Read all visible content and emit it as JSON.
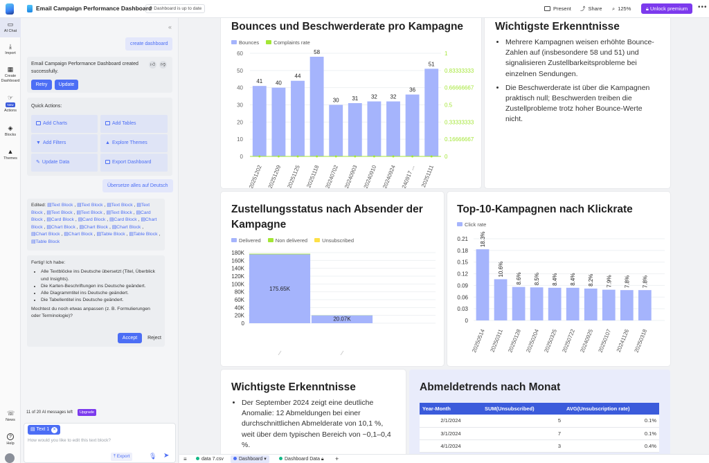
{
  "topbar": {
    "title": "Email Campaign Performance Dashboard",
    "status": "Dashboard is up to date",
    "present": "Present",
    "share": "Share",
    "zoom": "125%",
    "premium": "Unlock premium"
  },
  "rail": [
    {
      "label": "AI Chat",
      "icon": "chat-icon"
    },
    {
      "label": "Import",
      "icon": "import-icon"
    },
    {
      "label": "Create Dashboard",
      "icon": "dashboard-icon"
    },
    {
      "label": "Actions",
      "icon": "actions-icon",
      "badge": "New"
    },
    {
      "label": "Blocks",
      "icon": "blocks-icon"
    },
    {
      "label": "Themes",
      "icon": "themes-icon"
    },
    {
      "label": "News",
      "icon": "news-icon"
    },
    {
      "label": "Help",
      "icon": "help-icon"
    }
  ],
  "chat": {
    "msg1": "create dashboard",
    "reply1": "Email Campaign Performance Dashboard created successfully.",
    "retry": "Retry",
    "update": "Update",
    "quick_title": "Quick Actions:",
    "quick": [
      "Add Charts",
      "Add Tables",
      "Add Filters",
      "Explore Themes",
      "Update Data",
      "Export Dashboard"
    ],
    "msg2": "Übersetze alles auf Deutsch",
    "edited_label": "Edited:",
    "edited_items": [
      "Text Block",
      "Text Block",
      "Text Block",
      "Text Block",
      "Text Block",
      "Text Block",
      "Text Block",
      "Card Block",
      "Card Block",
      "Card Block",
      "Card Block",
      "Chart Block",
      "Chart Block",
      "Chart Block",
      "Chart Block",
      "Chart Block",
      "Chart Block",
      "Table Block",
      "Table Block",
      "Table Block"
    ],
    "done_title": "Fertig! Ich habe:",
    "done_items": [
      "Alle Textblöcke ins Deutsche übersetzt (Titel, Überblick und Insights).",
      "Die Karten-Beschriftungen ins Deutsche geändert.",
      "Alle Diagrammtitel ins Deutsche geändert.",
      "Die Tabellentitel ins Deutsche geändert."
    ],
    "done_question": "Mochtest du noch etwas anpassen (z. B. Formulierungen oder Terminologie)?",
    "accept": "Accept",
    "reject": "Reject",
    "usage": "11 of 20 AI messages left",
    "upgrade": "Upgrade",
    "chip": "Text 1",
    "placeholder": "How would you like to edit this text block?",
    "export": "Export"
  },
  "charts": {
    "bounces": {
      "title": "Bounces und Beschwerderate pro Kampagne",
      "legend": [
        "Bounces",
        "Complaints rate"
      ]
    },
    "insights1": {
      "title": "Wichtigste Erkenntnisse",
      "items": [
        "Mehrere Kampagnen weisen erhöhte Bounce-Zahlen auf (insbesondere 58 und 51) und signalisieren Zustellbarkeitsprobleme bei einzelnen Sendungen.",
        "Die Beschwerderate ist über die Kampagnen praktisch null; Beschwerden treiben die Zustellprobleme trotz hoher Bounce-Werte nicht."
      ]
    },
    "delivery": {
      "title": "Zustellungsstatus nach Absender der Kampagne",
      "legend": [
        "Delivered",
        "Non delivered",
        "Unsubscribed"
      ]
    },
    "ctr": {
      "title": "Top-10-Kampagnen nach Klickrate",
      "legend": [
        "Click rate"
      ]
    },
    "insights2": {
      "title": "Wichtigste Erkenntnisse",
      "items": [
        "Der September 2024 zeigt eine deutliche Anomalie: 12 Abmeldungen bei einer durchschnittlichen Abmelderate von 10,1 %, weit über dem typischen Bereich von ~0,1–0,4 %."
      ]
    },
    "unsub": {
      "title": "Abmeldetrends nach Monat",
      "headers": [
        "Year-Month",
        "SUM(Unsubscribed)",
        "AVG(Unsubscription rate)"
      ],
      "rows": [
        [
          "2/1/2024",
          "5",
          "0.1%"
        ],
        [
          "3/1/2024",
          "7",
          "0.1%"
        ],
        [
          "4/1/2024",
          "3",
          "0.4%"
        ]
      ]
    }
  },
  "tabs": [
    "data 7.csv",
    "Dashboard",
    "Dashboard Data"
  ],
  "chart_data": [
    {
      "type": "bar",
      "title": "Bounces und Beschwerderate pro Kampagne",
      "categories": [
        "20251202",
        "20251209",
        "20251125",
        "20251118",
        "20240702",
        "20240903",
        "20240910",
        "20240924",
        "20240917 ...",
        "20251111"
      ],
      "series": [
        {
          "name": "Bounces",
          "values": [
            41,
            40,
            44,
            58,
            30,
            31,
            32,
            32,
            36,
            51
          ],
          "color": "#a5b4fc"
        },
        {
          "name": "Complaints rate",
          "values": [
            0,
            0,
            0,
            0,
            0,
            0,
            0,
            0,
            0,
            0
          ],
          "color": "#a3e635"
        }
      ],
      "ylim": [
        0,
        60
      ],
      "yticks": [
        0,
        10,
        20,
        30,
        40,
        50,
        60
      ],
      "y2ticks": [
        "0",
        "0.16666667",
        "0.33333333",
        "0.5",
        "0.66666667",
        "0.83333333",
        "1"
      ],
      "legend": "top-left"
    },
    {
      "type": "bar",
      "title": "Zustellungsstatus nach Absender der Kampagne",
      "categories": [
        "",
        ""
      ],
      "series": [
        {
          "name": "Delivered",
          "values": [
            175650,
            20070
          ],
          "color": "#a5b4fc"
        },
        {
          "name": "Non delivered",
          "values": [
            1500,
            300
          ],
          "color": "#a3e635"
        },
        {
          "name": "Unsubscribed",
          "values": [
            0,
            0
          ],
          "color": "#fde047"
        }
      ],
      "data_labels": [
        "175.65K",
        "20.07K"
      ],
      "ylim": [
        0,
        180000
      ],
      "yticks": [
        "0",
        "20K",
        "40K",
        "60K",
        "80K",
        "100K",
        "120K",
        "140K",
        "160K",
        "180K"
      ],
      "legend": "top-left"
    },
    {
      "type": "bar",
      "title": "Top-10-Kampagnen nach Klickrate",
      "categories": [
        "20250514",
        "20250311",
        "20250128",
        "20250204",
        "20250325",
        "20250722",
        "20240925",
        "20250107",
        "20241126",
        "20250318"
      ],
      "series": [
        {
          "name": "Click rate",
          "values": [
            0.183,
            0.106,
            0.086,
            0.085,
            0.084,
            0.084,
            0.082,
            0.079,
            0.078,
            0.078
          ],
          "color": "#a5b4fc"
        }
      ],
      "data_labels": [
        "18.3%",
        "10.6%",
        "8.6%",
        "8.5%",
        "8.4%",
        "8.4%",
        "8.2%",
        "7.9%",
        "7.8%",
        "7.8%"
      ],
      "ylim": [
        0,
        0.21
      ],
      "yticks": [
        "0",
        "0.03",
        "0.06",
        "0.09",
        "0.12",
        "0.15",
        "0.18",
        "0.21"
      ],
      "legend": "top-left"
    }
  ]
}
